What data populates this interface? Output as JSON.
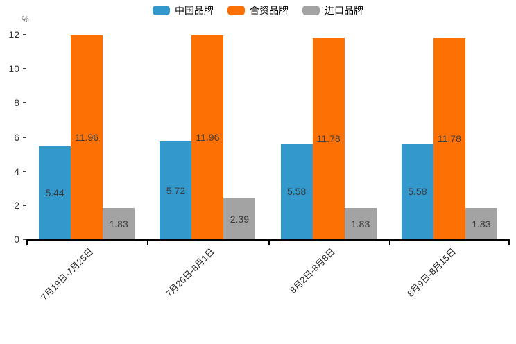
{
  "chart_data": {
    "type": "bar",
    "title": "",
    "unit_label": "%",
    "categories": [
      "7月19日-7月25日",
      "7月26日-8月1日",
      "8月2日-8月8日",
      "8月9日-8月15日"
    ],
    "series": [
      {
        "key": "china-brand",
        "name": "中国品牌",
        "color": "#3398cc",
        "values": [
          5.44,
          5.72,
          5.58,
          5.58
        ]
      },
      {
        "key": "joint-venture-brand",
        "name": "合资品牌",
        "color": "#fd7104",
        "values": [
          11.96,
          11.96,
          11.78,
          11.78
        ]
      },
      {
        "key": "import-brand",
        "name": "进口品牌",
        "color": "#a3a3a3",
        "values": [
          1.83,
          2.39,
          1.83,
          1.83
        ]
      }
    ],
    "ylim": [
      0,
      12
    ],
    "yticks": [
      0,
      2,
      4,
      6,
      8,
      10,
      12
    ],
    "legend_position": "top",
    "grid": false,
    "bar_label_decimals": 2,
    "bar_label_color": "#3b3b3b",
    "axis_color": "#000000"
  }
}
